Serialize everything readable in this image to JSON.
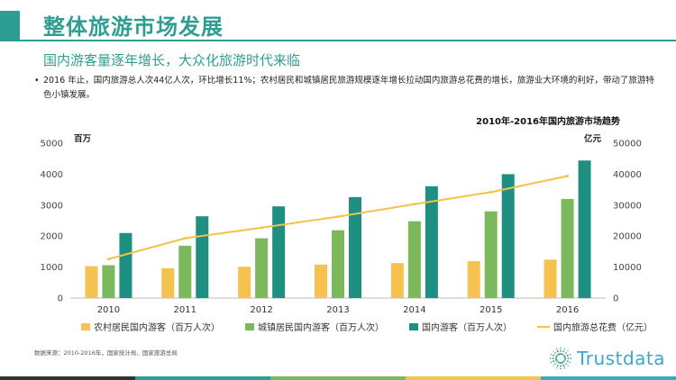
{
  "header": {
    "title": "整体旅游市场发展",
    "subtitle": "国内游客量逐年增长，大众化旅游时代来临",
    "bullet_dot": "•",
    "bullet": "2016 年止，国内旅游总人次44亿人次，环比增长11%；农村居民和城镇居民旅游规模逐年增长拉动国内旅游总花费的增长，旅游业大环境的利好，带动了旅游特色小镇发展。"
  },
  "colors": {
    "accent": "#2f9e92",
    "rural": "#f5c24f",
    "urban": "#7cb95c",
    "domestic": "#1f8f82",
    "spending": "#f2c24a"
  },
  "source": "数据来源：2010-2016年，国家统计局、国家旅游总局",
  "logo": {
    "text": "Trustdata",
    "icon": "starburst-logo-icon"
  },
  "chart_data": {
    "type": "bar",
    "title": "2010年-2016年国内旅游市场趋势",
    "y_left_unit": "百万",
    "y_right_unit": "亿元",
    "categories": [
      "2010",
      "2011",
      "2012",
      "2013",
      "2014",
      "2015",
      "2016"
    ],
    "ylim_left": [
      0,
      5000
    ],
    "yticks_left": [
      "0",
      "1000",
      "2000",
      "3000",
      "4000",
      "5000"
    ],
    "ylim_right": [
      0,
      50000
    ],
    "yticks_right": [
      "0",
      "10000",
      "20000",
      "30000",
      "40000",
      "50000"
    ],
    "grid": false,
    "legend_position": "bottom",
    "series": [
      {
        "name": "农村居民国内游客（百万人次）",
        "type": "bar",
        "axis": "left",
        "values": [
          1030,
          960,
          1010,
          1080,
          1130,
          1190,
          1240
        ]
      },
      {
        "name": "城镇居民国内游客（百万人次）",
        "type": "bar",
        "axis": "left",
        "values": [
          1060,
          1690,
          1930,
          2190,
          2480,
          2800,
          3200
        ]
      },
      {
        "name": "国内游客（百万人次）",
        "type": "bar",
        "axis": "left",
        "values": [
          2100,
          2640,
          2960,
          3260,
          3610,
          4000,
          4440
        ]
      },
      {
        "name": "国内旅游总花费（亿元）",
        "type": "line",
        "axis": "right",
        "values": [
          12580,
          19300,
          22710,
          26280,
          30310,
          34200,
          39390
        ]
      }
    ]
  }
}
